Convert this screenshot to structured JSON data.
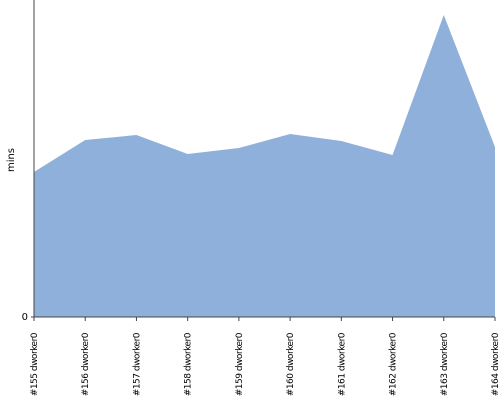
{
  "chart_data": {
    "type": "area",
    "y_label": "mins",
    "categories": [
      "#155 dworker0",
      "#156 dworker0",
      "#157 dworker0",
      "#158 dworker0",
      "#159 dworker0",
      "#160 dworker0",
      "#161 dworker0",
      "#162 dworker0",
      "#163 dworker0",
      "#164 dworker0"
    ],
    "values": [
      145,
      177,
      182,
      163,
      169,
      183,
      176,
      162,
      302,
      170
    ],
    "color": "#8fb0da",
    "ylim": [
      0,
      317
    ],
    "yticks": [
      0
    ]
  }
}
